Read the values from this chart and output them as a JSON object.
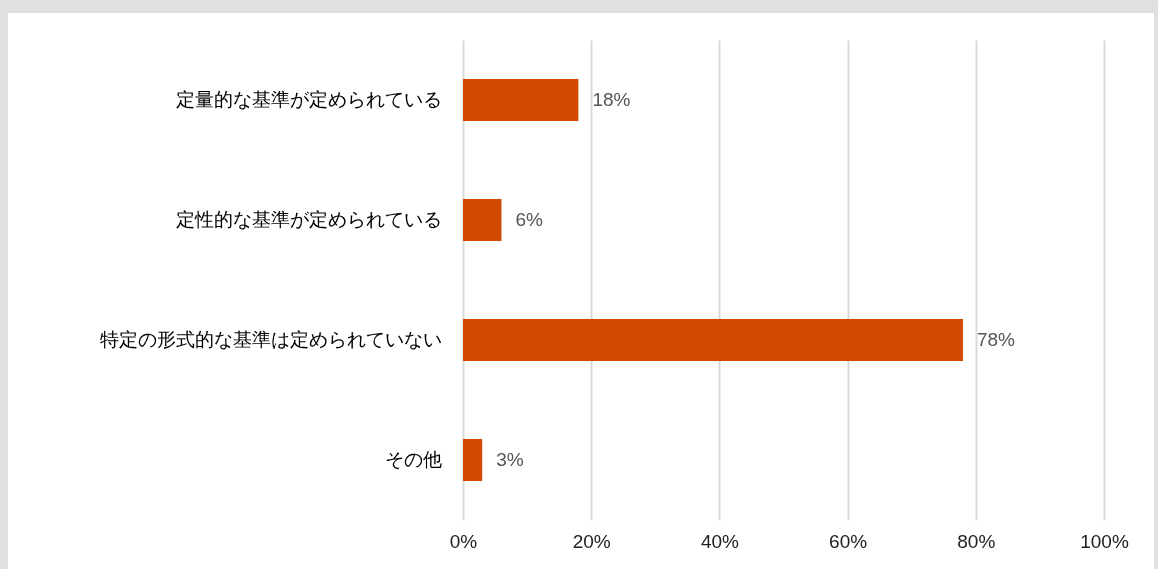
{
  "chart_data": {
    "type": "bar",
    "orientation": "horizontal",
    "categories": [
      "定量的な基準が定められている",
      "定性的な基準が定められている",
      "特定の形式的な基準は定められていない",
      "その他"
    ],
    "values": [
      18,
      6,
      78,
      3
    ],
    "value_labels": [
      "18%",
      "6%",
      "78%",
      "3%"
    ],
    "color": "#d24a00",
    "xlim": [
      0,
      100
    ],
    "xticks": [
      {
        "value": 0,
        "label": "0%"
      },
      {
        "value": 20,
        "label": "20%"
      },
      {
        "value": 40,
        "label": "40%"
      },
      {
        "value": 60,
        "label": "60%"
      },
      {
        "value": 80,
        "label": "80%"
      },
      {
        "value": 100,
        "label": "100%"
      }
    ],
    "grid": "x"
  }
}
